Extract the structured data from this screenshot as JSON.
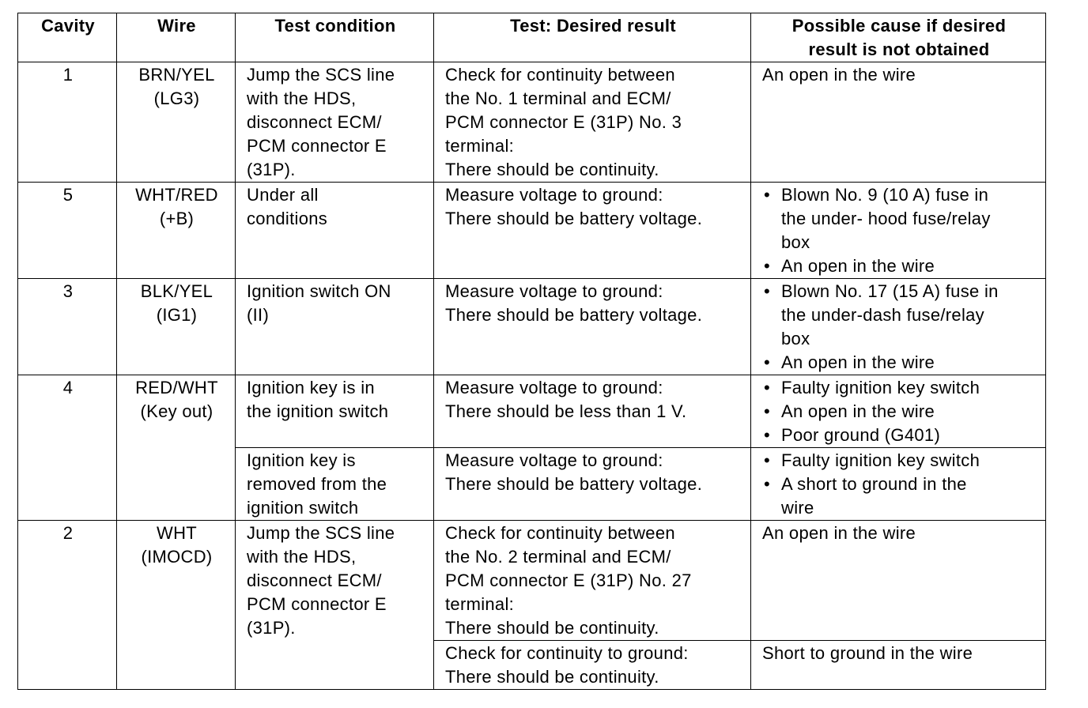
{
  "table": {
    "headers": [
      "Cavity",
      "Wire",
      "Test condition",
      "Test: Desired result",
      [
        "Possible cause if desired",
        "result is not obtained"
      ]
    ],
    "groups": [
      {
        "cavity": "1",
        "wire": [
          "BRN/YEL",
          "(LG3)"
        ],
        "conditions": [
          {
            "lines": [
              "Jump the SCS line",
              "with the HDS,",
              "disconnect ECM/",
              "PCM connector E",
              "(31P)."
            ],
            "results": [
              {
                "lines": [
                  "Check for continuity between",
                  "the No. 1 terminal and ECM/",
                  "PCM connector E (31P) No. 3",
                  "terminal:",
                  "There should be continuity."
                ],
                "cause": [
                  "An open in the wire"
                ]
              }
            ]
          }
        ]
      },
      {
        "cavity": "5",
        "wire": [
          "WHT/RED",
          "(+B)"
        ],
        "conditions": [
          {
            "lines": [
              "Under all",
              "conditions"
            ],
            "results": [
              {
                "lines": [
                  "Measure voltage to ground:",
                  "There should be battery voltage."
                ],
                "causes": [
                  [
                    "Blown No. 9 (10 A) fuse in",
                    "the under- hood fuse/relay",
                    "box"
                  ],
                  [
                    "An open in the wire"
                  ]
                ]
              }
            ]
          }
        ]
      },
      {
        "cavity": "3",
        "wire": [
          "BLK/YEL",
          "(IG1)"
        ],
        "conditions": [
          {
            "lines": [
              "Ignition switch ON",
              "(II)"
            ],
            "results": [
              {
                "lines": [
                  "Measure voltage to ground:",
                  "There should be battery voltage."
                ],
                "causes": [
                  [
                    "Blown No. 17 (15 A) fuse in",
                    "the under-dash fuse/relay",
                    "box"
                  ],
                  [
                    "An open in the wire"
                  ]
                ]
              }
            ]
          }
        ]
      },
      {
        "cavity": "4",
        "wire": [
          "RED/WHT",
          "(Key out)"
        ],
        "conditions": [
          {
            "lines": [
              "Ignition key is in",
              "the ignition switch"
            ],
            "results": [
              {
                "lines": [
                  "Measure voltage to ground:",
                  "There should be less than 1 V."
                ],
                "causes": [
                  [
                    "Faulty ignition key switch"
                  ],
                  [
                    "An open in the wire"
                  ],
                  [
                    "Poor ground (G401)"
                  ]
                ]
              }
            ]
          },
          {
            "lines": [
              "Ignition key is",
              "removed from the",
              "ignition switch"
            ],
            "results": [
              {
                "lines": [
                  "Measure voltage to ground:",
                  "There should be battery voltage."
                ],
                "causes": [
                  [
                    "Faulty ignition key switch"
                  ],
                  [
                    "A short to ground in the",
                    "wire"
                  ]
                ]
              }
            ]
          }
        ]
      },
      {
        "cavity": "2",
        "wire": [
          "WHT",
          "(IMOCD)"
        ],
        "conditions": [
          {
            "lines": [
              "Jump the SCS line",
              "with the HDS,",
              "disconnect ECM/",
              "PCM connector E",
              "(31P)."
            ],
            "results": [
              {
                "lines": [
                  "Check for continuity between",
                  "the No. 2 terminal and ECM/",
                  "PCM connector E (31P) No. 27",
                  "terminal:",
                  "There should be continuity."
                ],
                "cause": [
                  "An open in the wire"
                ]
              },
              {
                "lines": [
                  "Check for continuity to ground:",
                  "There should be continuity."
                ],
                "cause": [
                  "Short to ground in the wire"
                ]
              }
            ]
          }
        ]
      }
    ]
  }
}
